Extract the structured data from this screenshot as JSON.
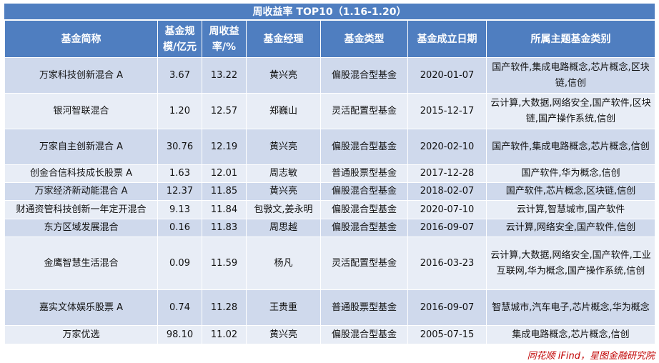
{
  "title": "周收益率 TOP10（1.16-1.20）",
  "headers": [
    "基金简称",
    "基金规模/亿元",
    "周收益率/%",
    "基金经理",
    "基金类型",
    "基金成立日期",
    "所属主题基金类别"
  ],
  "rows": [
    {
      "name": "万家科技创新混合 A",
      "scale": "3.67",
      "ret": "13.22",
      "manager": "黄兴亮",
      "type": "偏股混合型基金",
      "date": "2020-01-07",
      "topics": "国产软件,集成电路概念,芯片概念,区块链,信创"
    },
    {
      "name": "银河智联混合",
      "scale": "1.20",
      "ret": "12.57",
      "manager": "郑巍山",
      "type": "灵活配置型基金",
      "date": "2015-12-17",
      "topics": "云计算,大数据,网络安全,国产软件,区块链,国产操作系统,信创"
    },
    {
      "name": "万家自主创新混合 A",
      "scale": "30.76",
      "ret": "12.19",
      "manager": "黄兴亮",
      "type": "偏股混合型基金",
      "date": "2020-02-10",
      "topics": "国产软件,集成电路概念,芯片概念,信创"
    },
    {
      "name": "创金合信科技成长股票 A",
      "scale": "1.63",
      "ret": "12.01",
      "manager": "周志敏",
      "type": "普通股票型基金",
      "date": "2017-12-28",
      "topics": "国产软件,华为概念,信创"
    },
    {
      "name": "万家经济新动能混合 A",
      "scale": "12.37",
      "ret": "11.85",
      "manager": "黄兴亮",
      "type": "偏股混合型基金",
      "date": "2018-02-07",
      "topics": "国产软件,芯片概念,区块链,信创"
    },
    {
      "name": "财通资管科技创新一年定开混合",
      "scale": "9.13",
      "ret": "11.84",
      "manager": "包斅文,姜永明",
      "type": "偏股混合型基金",
      "date": "2020-07-10",
      "topics": "云计算,智慧城市,国产软件"
    },
    {
      "name": "东方区域发展混合",
      "scale": "0.16",
      "ret": "11.83",
      "manager": "周思越",
      "type": "偏股混合型基金",
      "date": "2016-09-07",
      "topics": "云计算,网络安全,国产软件,信创"
    },
    {
      "name": "金鹰智慧生活混合",
      "scale": "0.09",
      "ret": "11.59",
      "manager": "杨凡",
      "type": "灵活配置型基金",
      "date": "2016-03-23",
      "topics": "云计算,大数据,网络安全,国产软件,工业互联网,华为概念,国产操作系统,信创"
    },
    {
      "name": "嘉实文体娱乐股票 A",
      "scale": "0.74",
      "ret": "11.28",
      "manager": "王贵重",
      "type": "普通股票型基金",
      "date": "2016-09-07",
      "topics": "智慧城市,汽车电子,芯片概念,华为概念"
    },
    {
      "name": "万家优选",
      "scale": "98.10",
      "ret": "11.02",
      "manager": "黄兴亮",
      "type": "偏股混合型基金",
      "date": "2005-07-15",
      "topics": "集成电路概念,芯片概念,信创"
    }
  ],
  "source": "同花顺 iFind，星图金融研究院"
}
